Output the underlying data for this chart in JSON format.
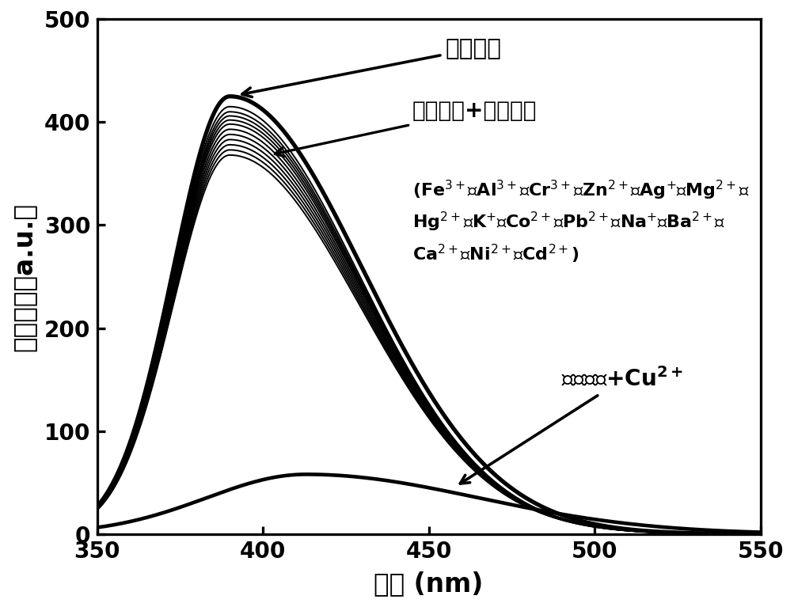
{
  "x_min": 350,
  "x_max": 550,
  "y_min": 0,
  "y_max": 500,
  "x_ticks": [
    350,
    400,
    450,
    500,
    550
  ],
  "y_ticks": [
    0,
    100,
    200,
    300,
    400,
    500
  ],
  "xlabel": "波长 (nm)",
  "ylabel": "荧光强度（a.u.）",
  "annotation_probe": "荧光探针",
  "annotation_other": "荧光探针+其他离子",
  "annotation_cu2_part1": "荧光探针+",
  "annotation_cu2_part2": "Cu",
  "background_color": "#ffffff",
  "line_color": "#000000",
  "figsize": [
    8.5,
    6.5
  ],
  "dpi": 118
}
